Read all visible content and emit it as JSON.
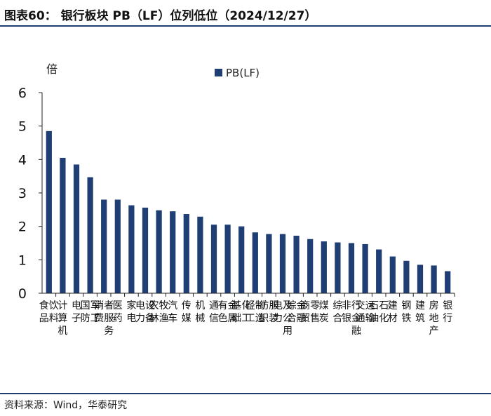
{
  "header": {
    "title": "图表60： 银行板块 PB（LF）位列低位（2024/12/27）"
  },
  "footer": {
    "source": "资料来源：Wind，华泰研究"
  },
  "colors": {
    "bar": "#1f3f74",
    "axis": "#222222",
    "rule": "#1f3f74"
  },
  "chart_data": {
    "type": "bar",
    "title": "",
    "ylabel": "倍",
    "ylim": [
      0,
      6
    ],
    "yticks": [
      0,
      1,
      2,
      3,
      4,
      5,
      6
    ],
    "grid": false,
    "legend_position": "top-center",
    "categories": [
      "食品饮料",
      "计算机",
      "电子",
      "国防军工",
      "消费者服务",
      "医药",
      "家电",
      "电力设备",
      "农林牧渔",
      "汽车",
      "传媒",
      "机械",
      "通信",
      "有色金属",
      "基础化工",
      "轻工制造",
      "纺织服装",
      "电力及公用",
      "综合金融",
      "商贸零售",
      "煤炭",
      "综合",
      "非银行金融",
      "交通运输",
      "石油石化",
      "建材",
      "钢铁",
      "建筑",
      "房地产",
      "银行"
    ],
    "series": [
      {
        "name": "PB(LF)",
        "values": [
          4.85,
          4.05,
          3.85,
          3.47,
          2.8,
          2.8,
          2.63,
          2.56,
          2.48,
          2.45,
          2.37,
          2.29,
          2.05,
          2.05,
          2.0,
          1.82,
          1.77,
          1.77,
          1.72,
          1.62,
          1.55,
          1.52,
          1.5,
          1.47,
          1.31,
          1.1,
          0.97,
          0.85,
          0.83,
          0.66
        ]
      }
    ]
  }
}
